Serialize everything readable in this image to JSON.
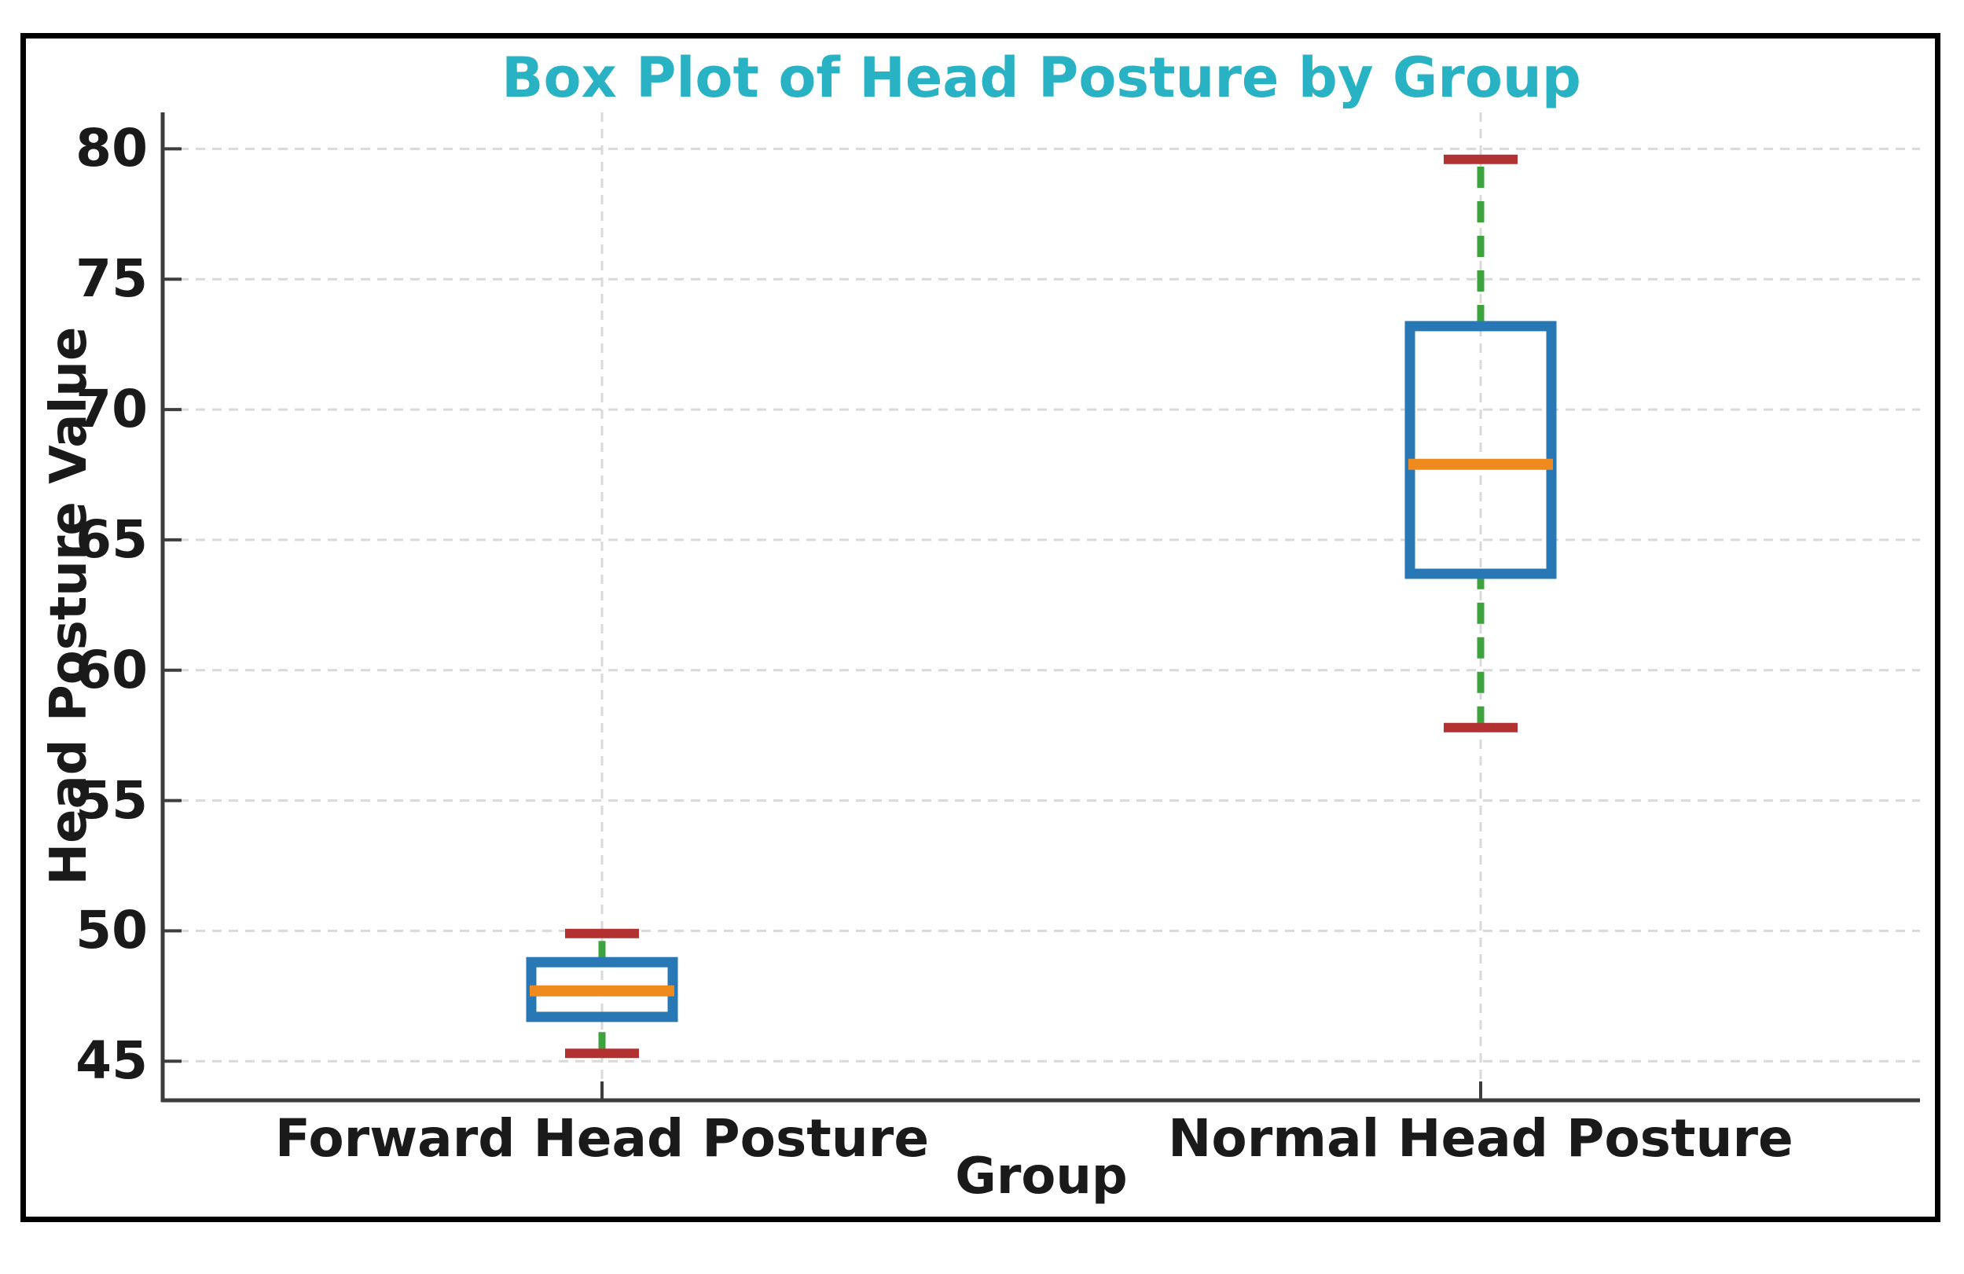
{
  "figure": {
    "background": "#ffffff",
    "border_color": "#000000"
  },
  "chart_data": {
    "type": "box",
    "title": "Box Plot of Head Posture by Group",
    "xlabel": "Group",
    "ylabel": "Head Posture Value",
    "categories": [
      "Forward Head Posture",
      "Normal Head Posture"
    ],
    "series": [
      {
        "name": "Forward Head Posture",
        "whisker_low": 45.3,
        "q1": 46.7,
        "median": 47.7,
        "q3": 48.8,
        "whisker_high": 49.9
      },
      {
        "name": "Normal Head Posture",
        "whisker_low": 57.8,
        "q1": 63.7,
        "median": 67.9,
        "q3": 73.2,
        "whisker_high": 79.6
      }
    ],
    "y_ticks": [
      45,
      50,
      55,
      60,
      65,
      70,
      75,
      80
    ],
    "ylim": [
      43.5,
      81.4
    ],
    "xlim_positions": [
      1,
      2
    ],
    "grid": "dashed horizontal at each y tick and dashed vertical at each category",
    "legend": "none",
    "colors": {
      "box_edge": "#2878b5",
      "median": "#ef8b1e",
      "whisker": "#3da43d",
      "cap": "#b23232",
      "grid": "#d9d9d9",
      "spine": "#3d3d3d",
      "title": "#29b2c3",
      "text": "#1a1a1a"
    }
  }
}
